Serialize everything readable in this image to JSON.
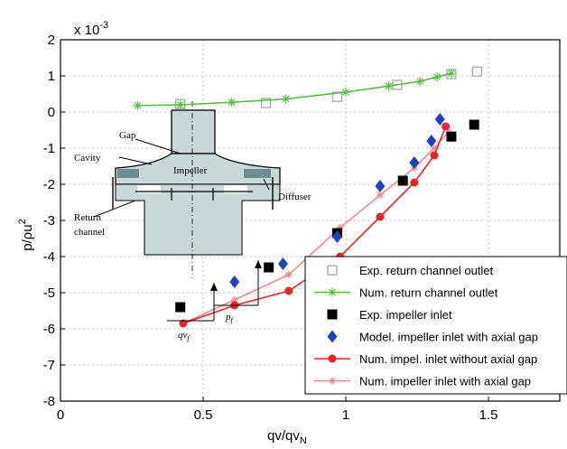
{
  "chart_data": {
    "type": "scatter",
    "xlabel_main": "qv/qv",
    "xlabel_sub": "N",
    "ylabel_main": "p/ρu",
    "ylabel_sup": "2",
    "yscale_text": "x 10",
    "yscale_exp": "-3",
    "xlim": [
      0,
      1.75
    ],
    "ylim": [
      -8,
      2
    ],
    "xticks": [
      "0",
      "0.5",
      "1",
      "1.5"
    ],
    "yticks": [
      "2",
      "1",
      "0",
      "-1",
      "-2",
      "-3",
      "-4",
      "-5",
      "-6",
      "-7",
      "-8"
    ],
    "grid": true,
    "legend_position": "bottom-right",
    "series": [
      {
        "name": "Exp. return channel outlet",
        "color": "#a8a8a8",
        "marker": "open-square",
        "line": false,
        "x": [
          0.42,
          0.72,
          0.97,
          1.18,
          1.37,
          1.46
        ],
        "y": [
          0.22,
          0.25,
          0.42,
          0.75,
          1.05,
          1.12
        ]
      },
      {
        "name": "Num. return channel outlet",
        "color": "#5dbb4a",
        "marker": "star",
        "line": true,
        "x": [
          0.27,
          0.42,
          0.6,
          0.79,
          1.0,
          1.15,
          1.26,
          1.32,
          1.37
        ],
        "y": [
          0.18,
          0.2,
          0.27,
          0.36,
          0.55,
          0.72,
          0.85,
          0.97,
          1.07
        ]
      },
      {
        "name": "Exp. impeller inlet",
        "color": "#000000",
        "marker": "filled-square",
        "line": false,
        "x": [
          0.42,
          0.73,
          0.97,
          1.2,
          1.37,
          1.45
        ],
        "y": [
          -5.4,
          -4.3,
          -3.35,
          -1.9,
          -0.68,
          -0.35
        ]
      },
      {
        "name": "Model. impeller inlet with axial gap",
        "color": "#1f3fc8",
        "marker": "diamond",
        "line": false,
        "x": [
          0.61,
          0.78,
          0.97,
          1.12,
          1.24,
          1.3,
          1.33
        ],
        "y": [
          -4.7,
          -4.2,
          -3.45,
          -2.05,
          -1.4,
          -0.8,
          -0.2
        ]
      },
      {
        "name": "Num. impel. inlet without axial gap",
        "color": "#e8242a",
        "marker": "filled-circle",
        "line": true,
        "x": [
          0.43,
          0.61,
          0.8,
          0.98,
          1.12,
          1.24,
          1.31,
          1.35
        ],
        "y": [
          -5.85,
          -5.35,
          -4.95,
          -4.0,
          -2.9,
          -1.95,
          -1.2,
          -0.4
        ]
      },
      {
        "name": "Num. impeller inlet with axial gap",
        "color": "#f08a8a",
        "marker": "small-star",
        "line": true,
        "x": [
          0.43,
          0.61,
          0.8,
          0.98,
          1.12,
          1.24,
          1.31,
          1.36
        ],
        "y": [
          -5.85,
          -5.2,
          -4.5,
          -3.2,
          -2.3,
          -1.55,
          -1.0,
          -0.55
        ]
      }
    ],
    "annotations": {
      "qv_label": "qv",
      "qv_sub": "f",
      "p_label": "p",
      "p_sub": "f"
    },
    "inset_labels": {
      "gap": "Gap",
      "cavity": "Cavity",
      "impeller": "Impeller",
      "diffuser": "Diffuser",
      "return_line1": "Return",
      "return_line2": "channel"
    }
  }
}
